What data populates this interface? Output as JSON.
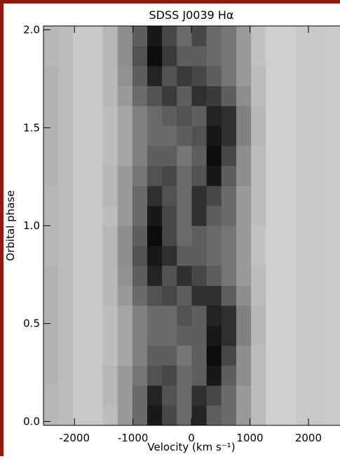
{
  "chart_data": {
    "type": "heatmap",
    "title": "SDSS J0039   Hα",
    "xlabel": "Velocity (km s⁻¹)",
    "ylabel": "Orbital phase",
    "xlim": [
      -2530,
      2540
    ],
    "ylim": [
      -0.02,
      2.02
    ],
    "xticks": [
      -2000,
      -1000,
      0,
      1000,
      2000
    ],
    "yticks": [
      {
        "value": 0,
        "label": "0.0"
      },
      0.5,
      {
        "value": 1,
        "label": "1.0"
      },
      1.5,
      {
        "value": 2,
        "label": "2.0"
      }
    ],
    "xbins": [
      -2530,
      -2276.5,
      -2023,
      -1769.5,
      -1516,
      -1262.5,
      -1009,
      -755.5,
      -502,
      -248.5,
      5,
      258.5,
      512,
      765.5,
      1019,
      1272.5,
      1526,
      1779.5,
      2033,
      2286.5,
      2540
    ],
    "ybins": [
      -0.02,
      0.082,
      0.184,
      0.286,
      0.388,
      0.49,
      0.592,
      0.694,
      0.796,
      0.898,
      1.0,
      1.102,
      1.204,
      1.306,
      1.408,
      1.51,
      1.612,
      1.714,
      1.816,
      1.918,
      2.02
    ],
    "zlim": [
      0,
      1
    ],
    "z": [
      [
        0.22,
        0.2,
        0.15,
        0.15,
        0.2,
        0.35,
        0.55,
        0.9,
        0.7,
        0.55,
        0.85,
        0.6,
        0.55,
        0.35,
        0.2,
        0.12,
        0.12,
        0.15,
        0.15,
        0.14
      ],
      [
        0.22,
        0.2,
        0.15,
        0.15,
        0.22,
        0.35,
        0.55,
        0.85,
        0.65,
        0.55,
        0.8,
        0.7,
        0.55,
        0.35,
        0.2,
        0.12,
        0.12,
        0.15,
        0.15,
        0.14
      ],
      [
        0.24,
        0.2,
        0.15,
        0.15,
        0.22,
        0.35,
        0.5,
        0.65,
        0.7,
        0.55,
        0.6,
        0.9,
        0.6,
        0.4,
        0.2,
        0.12,
        0.12,
        0.15,
        0.15,
        0.14
      ],
      [
        0.24,
        0.2,
        0.15,
        0.15,
        0.2,
        0.3,
        0.45,
        0.6,
        0.6,
        0.5,
        0.6,
        0.95,
        0.7,
        0.4,
        0.2,
        0.12,
        0.12,
        0.15,
        0.15,
        0.14
      ],
      [
        0.24,
        0.2,
        0.15,
        0.15,
        0.2,
        0.3,
        0.45,
        0.55,
        0.55,
        0.6,
        0.6,
        0.9,
        0.8,
        0.45,
        0.22,
        0.12,
        0.12,
        0.15,
        0.15,
        0.14
      ],
      [
        0.24,
        0.2,
        0.15,
        0.15,
        0.2,
        0.3,
        0.45,
        0.55,
        0.55,
        0.65,
        0.6,
        0.85,
        0.8,
        0.45,
        0.22,
        0.12,
        0.12,
        0.15,
        0.15,
        0.14
      ],
      [
        0.24,
        0.2,
        0.15,
        0.15,
        0.22,
        0.35,
        0.55,
        0.65,
        0.7,
        0.6,
        0.8,
        0.8,
        0.6,
        0.4,
        0.2,
        0.12,
        0.12,
        0.15,
        0.15,
        0.14
      ],
      [
        0.24,
        0.2,
        0.15,
        0.15,
        0.22,
        0.38,
        0.6,
        0.85,
        0.65,
        0.8,
        0.7,
        0.6,
        0.5,
        0.35,
        0.2,
        0.12,
        0.12,
        0.15,
        0.15,
        0.14
      ],
      [
        0.22,
        0.2,
        0.15,
        0.15,
        0.22,
        0.4,
        0.65,
        0.9,
        0.8,
        0.6,
        0.6,
        0.55,
        0.5,
        0.35,
        0.18,
        0.12,
        0.12,
        0.15,
        0.15,
        0.14
      ],
      [
        0.22,
        0.2,
        0.15,
        0.15,
        0.22,
        0.4,
        0.6,
        0.95,
        0.7,
        0.55,
        0.6,
        0.55,
        0.5,
        0.35,
        0.18,
        0.12,
        0.12,
        0.15,
        0.15,
        0.14
      ],
      [
        0.22,
        0.2,
        0.15,
        0.15,
        0.2,
        0.35,
        0.55,
        0.9,
        0.7,
        0.55,
        0.8,
        0.6,
        0.55,
        0.35,
        0.2,
        0.12,
        0.12,
        0.15,
        0.15,
        0.14
      ],
      [
        0.22,
        0.2,
        0.15,
        0.15,
        0.22,
        0.35,
        0.55,
        0.8,
        0.65,
        0.55,
        0.8,
        0.7,
        0.55,
        0.35,
        0.2,
        0.12,
        0.12,
        0.15,
        0.15,
        0.14
      ],
      [
        0.24,
        0.2,
        0.15,
        0.15,
        0.22,
        0.35,
        0.5,
        0.65,
        0.7,
        0.55,
        0.65,
        0.9,
        0.6,
        0.4,
        0.2,
        0.12,
        0.12,
        0.15,
        0.15,
        0.14
      ],
      [
        0.24,
        0.2,
        0.15,
        0.15,
        0.2,
        0.3,
        0.45,
        0.6,
        0.6,
        0.5,
        0.6,
        0.95,
        0.7,
        0.4,
        0.2,
        0.12,
        0.12,
        0.15,
        0.15,
        0.14
      ],
      [
        0.24,
        0.2,
        0.15,
        0.15,
        0.2,
        0.3,
        0.45,
        0.55,
        0.55,
        0.6,
        0.65,
        0.9,
        0.8,
        0.45,
        0.22,
        0.12,
        0.12,
        0.15,
        0.15,
        0.14
      ],
      [
        0.24,
        0.2,
        0.15,
        0.15,
        0.2,
        0.3,
        0.45,
        0.55,
        0.6,
        0.65,
        0.6,
        0.85,
        0.8,
        0.45,
        0.22,
        0.12,
        0.12,
        0.15,
        0.15,
        0.14
      ],
      [
        0.24,
        0.2,
        0.15,
        0.15,
        0.22,
        0.35,
        0.55,
        0.65,
        0.75,
        0.6,
        0.8,
        0.75,
        0.6,
        0.4,
        0.2,
        0.12,
        0.12,
        0.15,
        0.15,
        0.14
      ],
      [
        0.24,
        0.2,
        0.15,
        0.15,
        0.22,
        0.38,
        0.6,
        0.85,
        0.65,
        0.75,
        0.7,
        0.6,
        0.5,
        0.35,
        0.2,
        0.12,
        0.12,
        0.15,
        0.15,
        0.14
      ],
      [
        0.22,
        0.2,
        0.15,
        0.15,
        0.22,
        0.4,
        0.65,
        0.95,
        0.75,
        0.6,
        0.6,
        0.55,
        0.5,
        0.35,
        0.18,
        0.12,
        0.12,
        0.15,
        0.15,
        0.14
      ],
      [
        0.22,
        0.2,
        0.15,
        0.15,
        0.22,
        0.4,
        0.6,
        0.9,
        0.7,
        0.55,
        0.7,
        0.55,
        0.5,
        0.35,
        0.18,
        0.12,
        0.12,
        0.15,
        0.15,
        0.14
      ]
    ]
  }
}
